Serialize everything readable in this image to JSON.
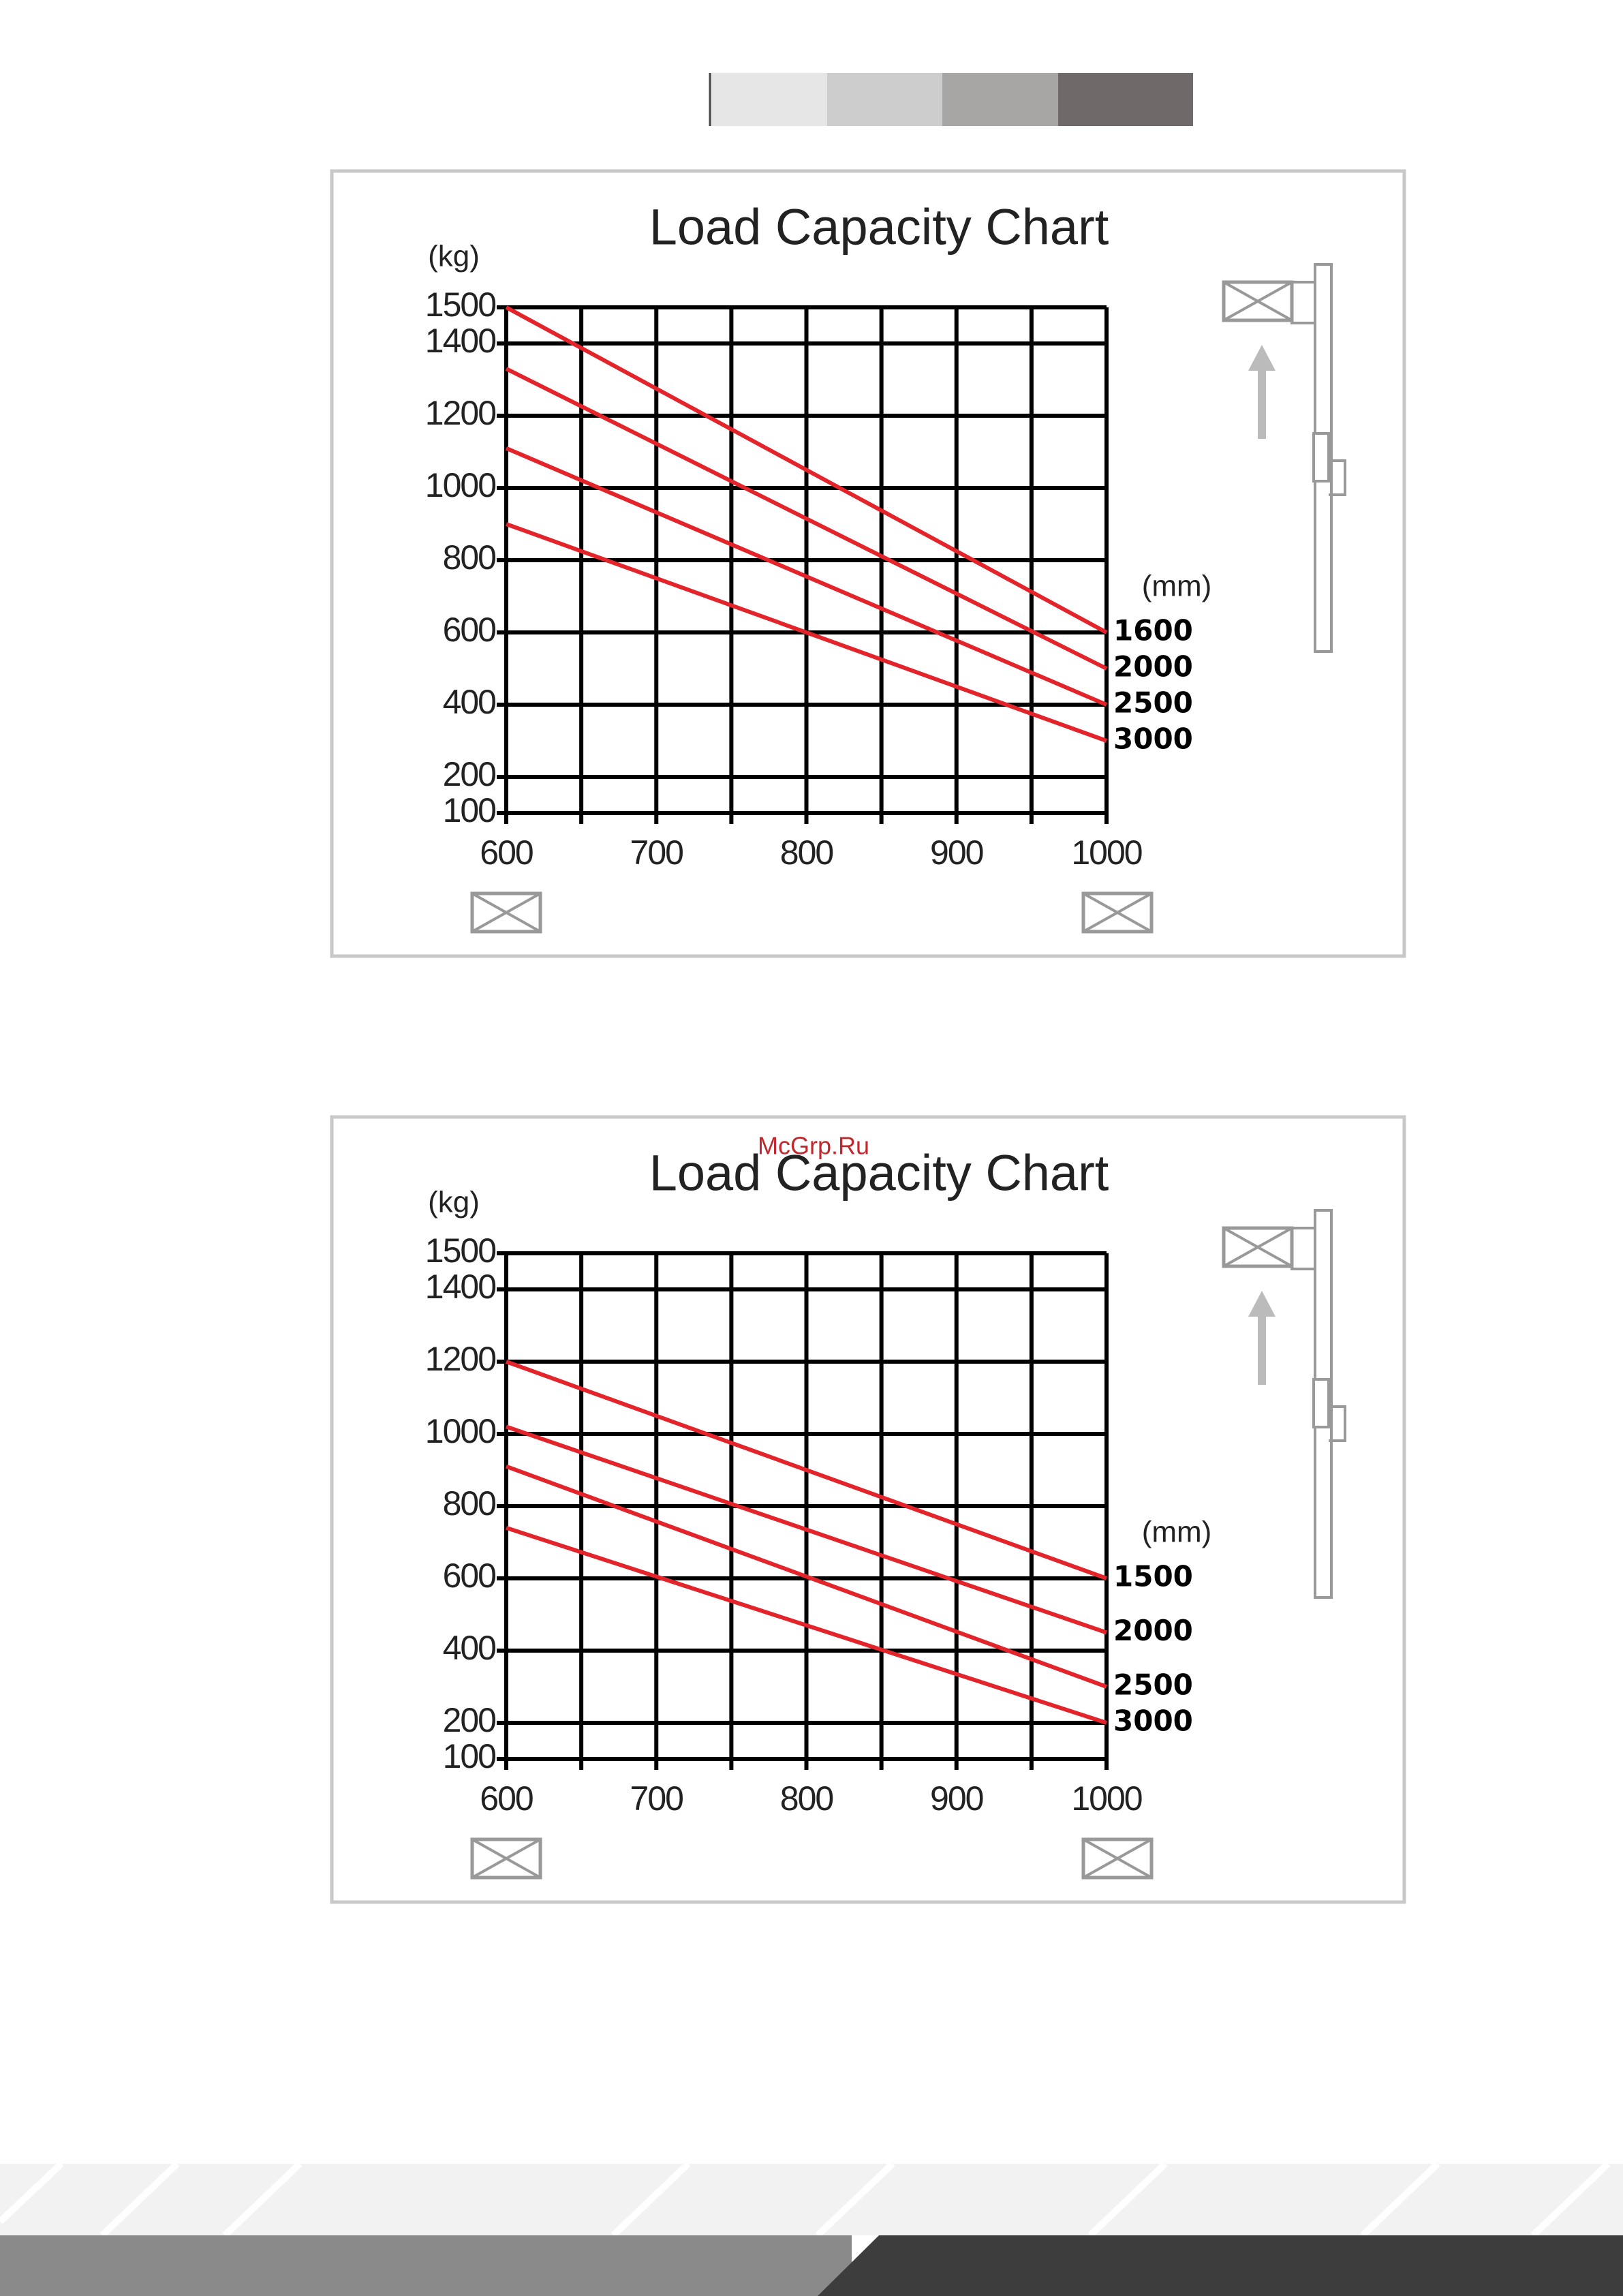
{
  "watermark": "McGrp.Ru",
  "chart_data": [
    {
      "type": "line",
      "title": "Load Capacity Chart",
      "y_unit": "(kg)",
      "series_unit": "(mm)",
      "x": [
        600,
        1000
      ],
      "series": [
        {
          "name": "1600",
          "color": "#e3242b",
          "values": [
            1500,
            600
          ]
        },
        {
          "name": "2000",
          "color": "#e3242b",
          "values": [
            1330,
            500
          ]
        },
        {
          "name": "2500",
          "color": "#e3242b",
          "values": [
            1110,
            400
          ]
        },
        {
          "name": "3000",
          "color": "#e3242b",
          "values": [
            900,
            300
          ]
        }
      ],
      "xlim": [
        600,
        1000
      ],
      "xticks": [
        600,
        700,
        800,
        900,
        1000
      ],
      "xminorticks": [
        650,
        750,
        850,
        950
      ],
      "ylim": [
        100,
        1500
      ],
      "yticks": [
        100,
        200,
        400,
        600,
        800,
        1000,
        1200,
        1400,
        1500
      ],
      "grid": true
    },
    {
      "type": "line",
      "title": "Load Capacity Chart",
      "y_unit": "(kg)",
      "series_unit": "(mm)",
      "x": [
        600,
        1000
      ],
      "series": [
        {
          "name": "1500",
          "color": "#e3242b",
          "values": [
            1200,
            600
          ]
        },
        {
          "name": "2000",
          "color": "#e3242b",
          "values": [
            1020,
            450
          ]
        },
        {
          "name": "2500",
          "color": "#e3242b",
          "values": [
            910,
            300
          ]
        },
        {
          "name": "3000",
          "color": "#e3242b",
          "values": [
            740,
            200
          ]
        }
      ],
      "xlim": [
        600,
        1000
      ],
      "xticks": [
        600,
        700,
        800,
        900,
        1000
      ],
      "xminorticks": [
        650,
        750,
        850,
        950
      ],
      "ylim": [
        100,
        1500
      ],
      "yticks": [
        100,
        200,
        400,
        600,
        800,
        1000,
        1200,
        1400,
        1500
      ],
      "grid": true
    }
  ]
}
